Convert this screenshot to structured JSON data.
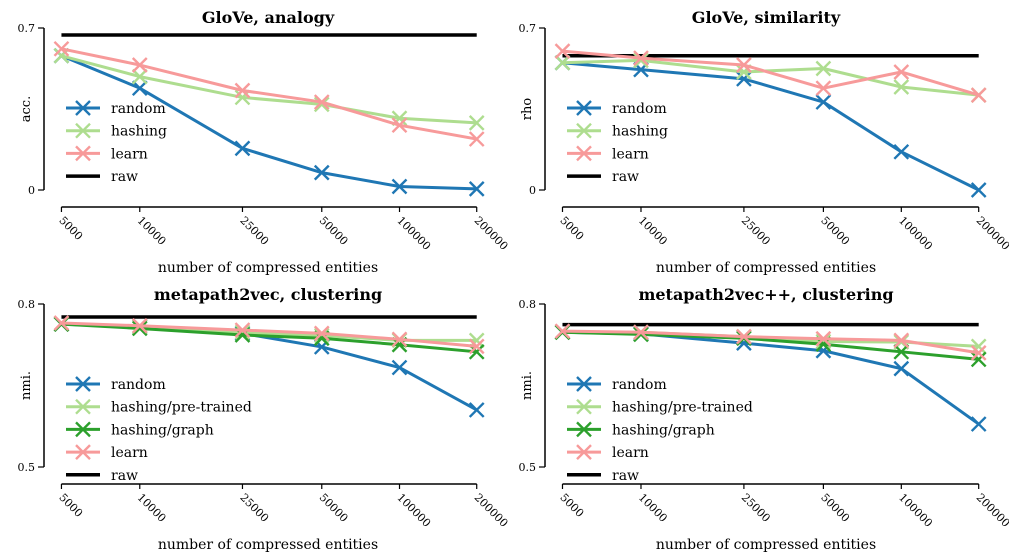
{
  "chart_data": [
    {
      "type": "line",
      "title": "GloVe, analogy",
      "xlabel": "number of compressed entities",
      "ylabel": "acc.",
      "categories": [
        "5000",
        "10000",
        "25000",
        "50000",
        "100000",
        "200000"
      ],
      "ylim": [
        0,
        0.7
      ],
      "yticks": [
        "0",
        "0.7"
      ],
      "raw": 0.67,
      "series": [
        {
          "name": "random",
          "color": "#1f77b4",
          "values": [
            0.58,
            0.44,
            0.18,
            0.075,
            0.015,
            0.005
          ]
        },
        {
          "name": "hashing",
          "color": "#aedd8f",
          "values": [
            0.58,
            0.49,
            0.4,
            0.37,
            0.31,
            0.29
          ]
        },
        {
          "name": "learn",
          "color": "#f79a9a",
          "values": [
            0.61,
            0.54,
            0.43,
            0.38,
            0.28,
            0.22
          ]
        }
      ],
      "legend": [
        "random",
        "hashing",
        "learn",
        "raw"
      ],
      "legend_position": "center-left"
    },
    {
      "type": "line",
      "title": "GloVe, similarity",
      "xlabel": "number of compressed entities",
      "ylabel": "rho",
      "categories": [
        "5000",
        "10000",
        "25000",
        "50000",
        "100000",
        "200000"
      ],
      "ylim": [
        0,
        0.7
      ],
      "yticks": [
        "0",
        "0.7"
      ],
      "raw": 0.58,
      "series": [
        {
          "name": "random",
          "color": "#1f77b4",
          "values": [
            0.55,
            0.52,
            0.48,
            0.38,
            0.165,
            0.0
          ]
        },
        {
          "name": "hashing",
          "color": "#aedd8f",
          "values": [
            0.55,
            0.56,
            0.51,
            0.525,
            0.445,
            0.41
          ]
        },
        {
          "name": "learn",
          "color": "#f79a9a",
          "values": [
            0.6,
            0.57,
            0.54,
            0.44,
            0.51,
            0.41
          ]
        }
      ],
      "legend": [
        "random",
        "hashing",
        "learn",
        "raw"
      ],
      "legend_position": "center-left"
    },
    {
      "type": "line",
      "title": "metapath2vec, clustering",
      "xlabel": "number of compressed entities",
      "ylabel": "nmi.",
      "categories": [
        "5000",
        "10000",
        "25000",
        "50000",
        "100000",
        "200000"
      ],
      "ylim": [
        0.5,
        0.8
      ],
      "yticks": [
        "0.5",
        "0.8"
      ],
      "raw": 0.776,
      "series": [
        {
          "name": "random",
          "color": "#1f77b4",
          "values": [
            0.763,
            0.758,
            0.746,
            0.721,
            0.683,
            0.605
          ]
        },
        {
          "name": "hashing/pre-trained",
          "color": "#aedd8f",
          "values": [
            0.763,
            0.758,
            0.748,
            0.742,
            0.733,
            0.733
          ]
        },
        {
          "name": "hashing/graph",
          "color": "#2ca02c",
          "values": [
            0.763,
            0.755,
            0.743,
            0.737,
            0.725,
            0.712
          ]
        },
        {
          "name": "learn",
          "color": "#f79a9a",
          "values": [
            0.765,
            0.76,
            0.752,
            0.746,
            0.735,
            0.722
          ]
        }
      ],
      "legend": [
        "random",
        "hashing/pre-trained",
        "hashing/graph",
        "learn",
        "raw"
      ],
      "legend_position": "center-left"
    },
    {
      "type": "line",
      "title": "metapath2vec++, clustering",
      "xlabel": "number of compressed entities",
      "ylabel": "nmi.",
      "categories": [
        "5000",
        "10000",
        "25000",
        "50000",
        "100000",
        "200000"
      ],
      "ylim": [
        0.5,
        0.8
      ],
      "yticks": [
        "0.5",
        "0.8"
      ],
      "raw": 0.762,
      "series": [
        {
          "name": "random",
          "color": "#1f77b4",
          "values": [
            0.748,
            0.745,
            0.728,
            0.714,
            0.681,
            0.579
          ]
        },
        {
          "name": "hashing/pre-trained",
          "color": "#aedd8f",
          "values": [
            0.748,
            0.748,
            0.74,
            0.731,
            0.73,
            0.722
          ]
        },
        {
          "name": "hashing/graph",
          "color": "#2ca02c",
          "values": [
            0.748,
            0.744,
            0.737,
            0.726,
            0.712,
            0.698
          ]
        },
        {
          "name": "learn",
          "color": "#f79a9a",
          "values": [
            0.75,
            0.748,
            0.74,
            0.736,
            0.733,
            0.71
          ]
        }
      ],
      "legend": [
        "random",
        "hashing/pre-trained",
        "hashing/graph",
        "learn",
        "raw"
      ],
      "legend_position": "center-left"
    }
  ]
}
